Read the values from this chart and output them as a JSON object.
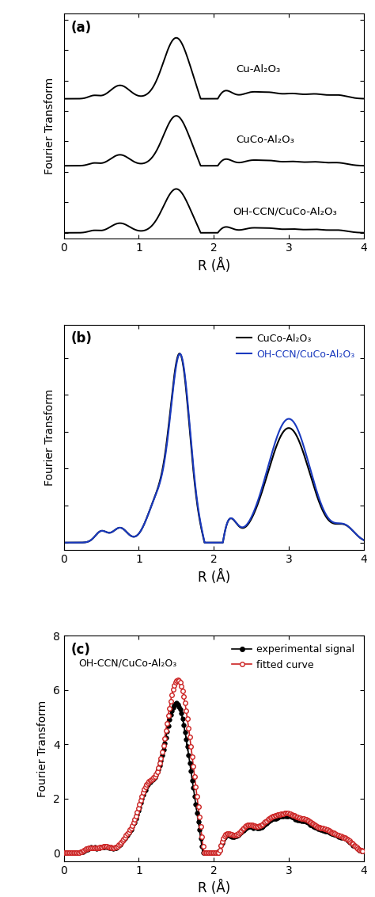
{
  "panel_a": {
    "label": "(a)",
    "xlabel": "R (Å)",
    "ylabel": "Fourier Transform",
    "xlim": [
      0,
      4
    ],
    "ylim": [
      -0.1,
      3.6
    ],
    "xticks": [
      0,
      1,
      2,
      3,
      4
    ],
    "legends": [
      "Cu-Al₂O₃",
      "CuCo-Al₂O₃",
      "OH-CCN/CuCo-Al₂O₃"
    ],
    "offsets": [
      2.2,
      1.1,
      0.0
    ],
    "line_color": "#000000",
    "line_width": 1.4
  },
  "panel_b": {
    "label": "(b)",
    "xlabel": "R (Å)",
    "ylabel": "Fourier Transform",
    "xlim": [
      0,
      4
    ],
    "xticks": [
      0,
      1,
      2,
      3,
      4
    ],
    "legends": [
      "CuCo-Al₂O₃",
      "OH-CCN/CuCo-Al₂O₃"
    ],
    "colors": [
      "#000000",
      "#1a3abf"
    ],
    "line_width": 1.5
  },
  "panel_c": {
    "label": "(c)",
    "xlabel": "R (Å)",
    "ylabel": "Fourier Transform",
    "xlim": [
      0,
      4
    ],
    "ylim": [
      -0.3,
      8
    ],
    "yticks": [
      0,
      2,
      4,
      6,
      8
    ],
    "xticks": [
      0,
      1,
      2,
      3,
      4
    ],
    "annotation": "OH-CCN/CuCo-Al₂O₃",
    "legends": [
      "experimental signal",
      "fitted curve"
    ],
    "colors": [
      "#000000",
      "#cc2222"
    ],
    "line_width": 1.2,
    "marker_size": 4
  },
  "figure_bg": "#ffffff",
  "font_size": 10,
  "label_font_size": 12
}
